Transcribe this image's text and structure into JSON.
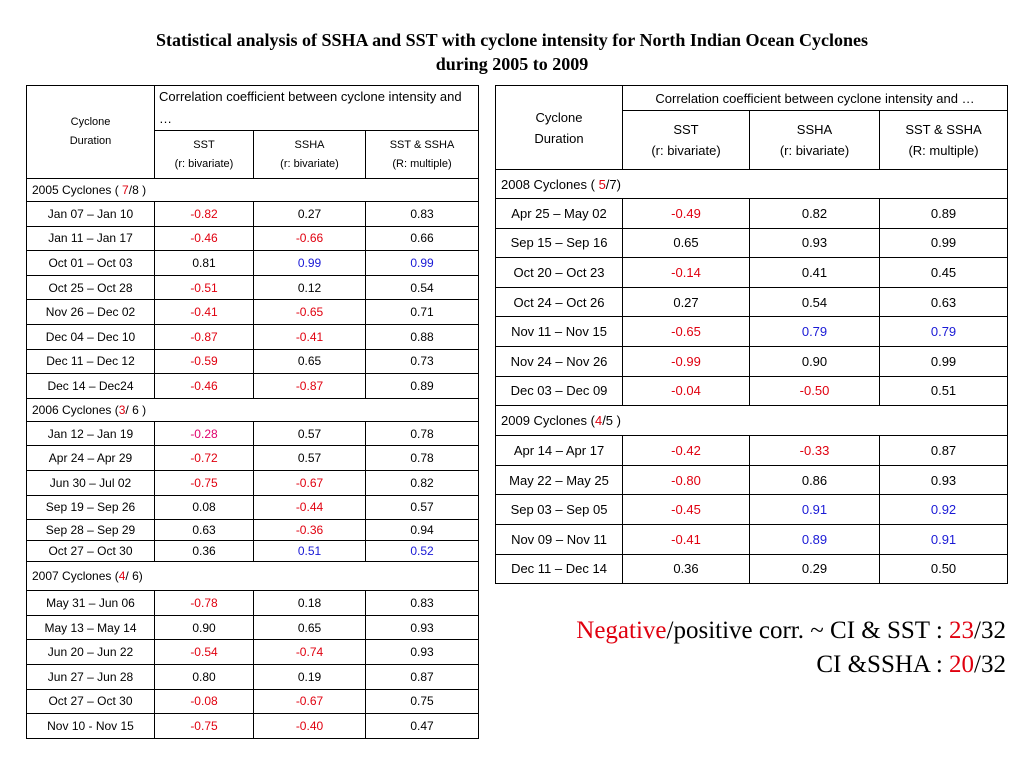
{
  "title": {
    "line1": "Statistical analysis of SSHA and SST with cyclone intensity for North Indian Ocean Cyclones",
    "line2": "during 2005 to 2009"
  },
  "left_table": {
    "header": {
      "cyclone_line1": "Cyclone",
      "cyclone_line2": "Duration",
      "corr": "Correlation coefficient between cyclone intensity and …",
      "sst": "SST",
      "sst_sub": "(r: bivariate)",
      "ssha": "SSHA",
      "ssha_sub": "(r: bivariate)",
      "both": "SST & SSHA",
      "both_sub": "(R: multiple)"
    },
    "groups": [
      {
        "pre": "2005 Cyclones ( ",
        "num": "7",
        "post": "/8 )",
        "rows": [
          {
            "d": "Jan 07 – Jan 10",
            "sst": "-0.82",
            "ssha": "0.27",
            "both": "0.83",
            "c": [
              "neg",
              "",
              ""
            ]
          },
          {
            "d": "Jan 11 – Jan 17",
            "sst": "-0.46",
            "ssha": "-0.66",
            "both": "0.66",
            "c": [
              "neg",
              "neg",
              ""
            ]
          },
          {
            "d": "Oct 01 – Oct 03",
            "sst": "0.81",
            "ssha": "0.99",
            "both": "0.99",
            "c": [
              "",
              "pos",
              "pos"
            ]
          },
          {
            "d": "Oct 25 – Oct 28",
            "sst": "-0.51",
            "ssha": "0.12",
            "both": "0.54",
            "c": [
              "neg",
              "",
              ""
            ]
          },
          {
            "d": "Nov 26 – Dec 02",
            "sst": "-0.41",
            "ssha": "-0.65",
            "both": "0.71",
            "c": [
              "neg",
              "neg",
              ""
            ]
          },
          {
            "d": "Dec 04 – Dec 10",
            "sst": "-0.87",
            "ssha": "-0.41",
            "both": "0.88",
            "c": [
              "neg",
              "neg",
              ""
            ]
          },
          {
            "d": "Dec 11 – Dec 12",
            "sst": "-0.59",
            "ssha": "0.65",
            "both": "0.73",
            "c": [
              "neg",
              "",
              ""
            ]
          },
          {
            "d": "Dec 14 – Dec24",
            "sst": "-0.46",
            "ssha": "-0.87",
            "both": "0.89",
            "c": [
              "neg",
              "neg",
              ""
            ]
          }
        ]
      },
      {
        "pre": "2006 Cyclones (",
        "num": "3",
        "post": "/ 6 )",
        "rows": [
          {
            "d": "Jan 12 – Jan 19",
            "sst": "-0.28",
            "ssha": "0.57",
            "both": "0.78",
            "c": [
              "mag",
              "",
              ""
            ]
          },
          {
            "d": "Apr 24 – Apr 29",
            "sst": "-0.72",
            "ssha": "0.57",
            "both": "0.78",
            "c": [
              "neg",
              "",
              ""
            ]
          },
          {
            "d": "Jun 30 – Jul 02",
            "sst": "-0.75",
            "ssha": "-0.67",
            "both": "0.82",
            "c": [
              "neg",
              "neg",
              ""
            ]
          },
          {
            "d": "Sep 19 – Sep 26",
            "sst": "0.08",
            "ssha": "-0.44",
            "both": "0.57",
            "c": [
              "",
              "neg",
              ""
            ]
          },
          {
            "d": "Sep 28 – Sep 29",
            "sst": "0.63",
            "ssha": "-0.36",
            "both": "0.94",
            "c": [
              "",
              "neg",
              ""
            ]
          },
          {
            "d": "Oct 27 – Oct 30",
            "sst": "0.36",
            "ssha": "0.51",
            "both": "0.52",
            "c": [
              "",
              "pos",
              "pos"
            ]
          }
        ]
      },
      {
        "pre": "2007 Cyclones (",
        "num": "4",
        "post": "/ 6)",
        "rows": [
          {
            "d": "May 31 – Jun 06",
            "sst": "-0.78",
            "ssha": "0.18",
            "both": "0.83",
            "c": [
              "neg",
              "",
              ""
            ]
          },
          {
            "d": "May 13 – May 14",
            "sst": "0.90",
            "ssha": "0.65",
            "both": "0.93",
            "c": [
              "",
              "",
              ""
            ]
          },
          {
            "d": "Jun 20 – Jun 22",
            "sst": "-0.54",
            "ssha": "-0.74",
            "both": "0.93",
            "c": [
              "neg",
              "neg",
              ""
            ]
          },
          {
            "d": "Jun 27 – Jun 28",
            "sst": "0.80",
            "ssha": "0.19",
            "both": "0.87",
            "c": [
              "",
              "",
              ""
            ]
          },
          {
            "d": "Oct 27 – Oct 30",
            "sst": "-0.08",
            "ssha": "-0.67",
            "both": "0.75",
            "c": [
              "neg",
              "neg",
              ""
            ]
          },
          {
            "d": "Nov 10 -  Nov 15",
            "sst": "-0.75",
            "ssha": "-0.40",
            "both": "0.47",
            "c": [
              "neg",
              "neg",
              ""
            ]
          }
        ]
      }
    ]
  },
  "right_table": {
    "header": {
      "cyclone_line1": "Cyclone",
      "cyclone_line2": "Duration",
      "corr": "Correlation coefficient between cyclone intensity and …",
      "sst": "SST",
      "sst_sub": "(r: bivariate)",
      "ssha": "SSHA",
      "ssha_sub": "(r: bivariate)",
      "both": "SST & SSHA",
      "both_sub": "(R: multiple)"
    },
    "groups": [
      {
        "pre": "2008 Cyclones ( ",
        "num": "5",
        "post": "/7)",
        "rows": [
          {
            "d": "Apr 25 – May 02",
            "sst": "-0.49",
            "ssha": "0.82",
            "both": "0.89",
            "c": [
              "neg",
              "",
              ""
            ]
          },
          {
            "d": "Sep 15 – Sep 16",
            "sst": "0.65",
            "ssha": "0.93",
            "both": "0.99",
            "c": [
              "",
              "",
              ""
            ]
          },
          {
            "d": "Oct 20 – Oct 23",
            "sst": "-0.14",
            "ssha": "0.41",
            "both": "0.45",
            "c": [
              "neg",
              "",
              ""
            ]
          },
          {
            "d": "Oct 24 – Oct 26",
            "sst": "0.27",
            "ssha": "0.54",
            "both": "0.63",
            "c": [
              "",
              "",
              ""
            ]
          },
          {
            "d": "Nov 11 – Nov 15",
            "sst": "-0.65",
            "ssha": "0.79",
            "both": "0.79",
            "c": [
              "neg",
              "pos",
              "pos"
            ]
          },
          {
            "d": "Nov 24 – Nov 26",
            "sst": "-0.99",
            "ssha": "0.90",
            "both": "0.99",
            "c": [
              "neg",
              "",
              ""
            ]
          },
          {
            "d": "Dec 03 – Dec 09",
            "sst": "-0.04",
            "ssha": "-0.50",
            "both": "0.51",
            "c": [
              "neg",
              "neg",
              ""
            ]
          }
        ]
      },
      {
        "pre": "2009 Cyclones (",
        "num": "4",
        "post": "/5 )",
        "rows": [
          {
            "d": "Apr 14 – Apr 17",
            "sst": "-0.42",
            "ssha": "-0.33",
            "both": "0.87",
            "c": [
              "neg",
              "neg",
              ""
            ]
          },
          {
            "d": "May 22 – May 25",
            "sst": "-0.80",
            "ssha": "0.86",
            "both": "0.93",
            "c": [
              "neg",
              "",
              ""
            ]
          },
          {
            "d": "Sep 03 – Sep 05",
            "sst": "-0.45",
            "ssha": "0.91",
            "both": "0.92",
            "c": [
              "neg",
              "pos",
              "pos"
            ]
          },
          {
            "d": "Nov 09 – Nov 11",
            "sst": "-0.41",
            "ssha": "0.89",
            "both": "0.91",
            "c": [
              "neg",
              "pos",
              "pos"
            ]
          },
          {
            "d": "Dec 11 – Dec 14",
            "sst": "0.36",
            "ssha": "0.29",
            "both": "0.50",
            "c": [
              "",
              "",
              ""
            ]
          }
        ]
      }
    ]
  },
  "note": {
    "line1_neg": "Negative",
    "line1_rest": "/positive corr. ~ CI & SST    : ",
    "line1_num": "23",
    "line1_den": "/32",
    "line2_label": "CI &SSHA : ",
    "line2_num": "20",
    "line2_den": "/32"
  }
}
